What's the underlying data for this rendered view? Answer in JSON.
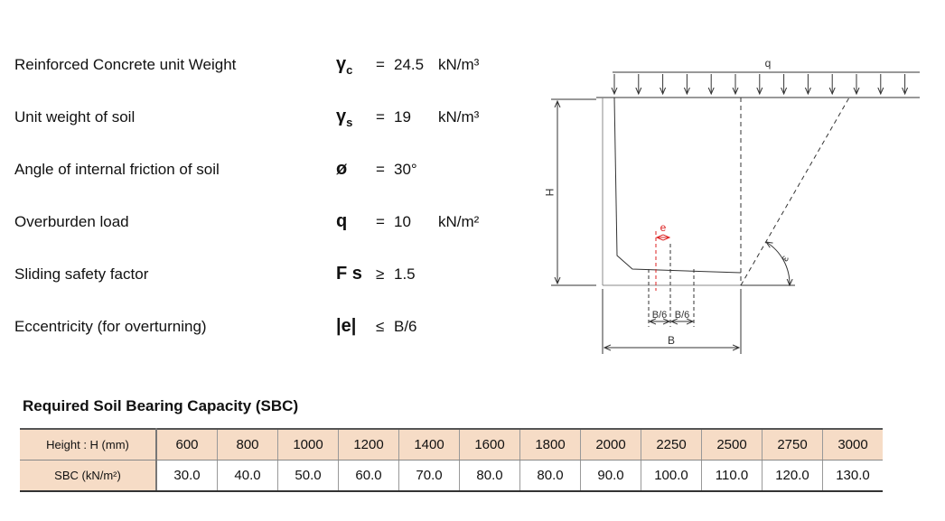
{
  "parameters": [
    {
      "label": "Reinforced Concrete unit Weight",
      "symbol": "γ",
      "subscript": "c",
      "operator": "=",
      "value": "24.5",
      "unit": "kN/m³"
    },
    {
      "label": "Unit weight of soil",
      "symbol": "γ",
      "subscript": "s",
      "operator": "=",
      "value": "19",
      "unit": "kN/m³"
    },
    {
      "label": "Angle of internal friction of soil",
      "symbol": "ø",
      "operator": "=",
      "value": "30°"
    },
    {
      "label": "Overburden load",
      "symbol": "q",
      "operator": "=",
      "value": "10",
      "unit": "kN/m²"
    },
    {
      "label": "Sliding safety factor",
      "symbol": "F s",
      "operator": "≥",
      "value": "1.5"
    },
    {
      "label": "Eccentricity (for overturning)",
      "symbol": "|e|",
      "operator": "≤",
      "value": "B/6"
    }
  ],
  "diagram": {
    "load_label": "q",
    "height_label": "H",
    "eccentricity_label": "e",
    "left_sixth_label": "B/6",
    "right_sixth_label": "B/6",
    "base_label": "B",
    "angle_label": "ε"
  },
  "table": {
    "title": "Required Soil Bearing Capacity (SBC)",
    "rows": [
      [
        "Height : H (mm)",
        "600",
        "800",
        "1000",
        "1200",
        "1400",
        "1600",
        "1800",
        "2000",
        "2250",
        "2500",
        "2750",
        "3000"
      ],
      [
        "SBC (kN/m²)",
        "30.0",
        "40.0",
        "50.0",
        "60.0",
        "70.0",
        "80.0",
        "80.0",
        "90.0",
        "100.0",
        "110.0",
        "120.0",
        "130.0"
      ]
    ]
  }
}
